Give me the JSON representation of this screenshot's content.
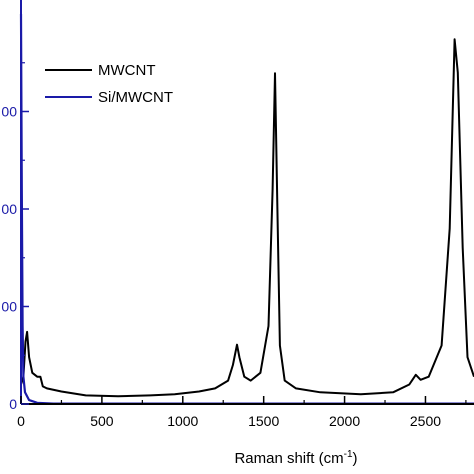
{
  "chart_data": {
    "type": "line",
    "xlabel": "Raman shift (cm",
    "xlabel_sup": "-1",
    "xlabel_close": ")",
    "xlim": [
      0,
      2800
    ],
    "ylim": [
      0,
      1.0
    ],
    "x_ticks": [
      0,
      500,
      1000,
      1500,
      2000,
      2500
    ],
    "y_ticks": [
      0,
      0.25,
      0.5,
      0.75
    ],
    "y_tick_labels": [
      "0",
      "00",
      "00",
      "00"
    ],
    "grid": false,
    "legend_position": "top-left",
    "series": [
      {
        "name": "MWCNT",
        "color": "#000000",
        "points": [
          [
            0,
            0.05
          ],
          [
            15,
            0.07
          ],
          [
            28,
            0.16
          ],
          [
            38,
            0.185
          ],
          [
            50,
            0.12
          ],
          [
            70,
            0.08
          ],
          [
            100,
            0.07
          ],
          [
            120,
            0.07
          ],
          [
            135,
            0.045
          ],
          [
            160,
            0.04
          ],
          [
            250,
            0.032
          ],
          [
            400,
            0.022
          ],
          [
            600,
            0.02
          ],
          [
            800,
            0.022
          ],
          [
            950,
            0.025
          ],
          [
            1100,
            0.032
          ],
          [
            1200,
            0.04
          ],
          [
            1280,
            0.06
          ],
          [
            1310,
            0.1
          ],
          [
            1335,
            0.152
          ],
          [
            1350,
            0.12
          ],
          [
            1380,
            0.07
          ],
          [
            1420,
            0.06
          ],
          [
            1480,
            0.08
          ],
          [
            1530,
            0.2
          ],
          [
            1555,
            0.55
          ],
          [
            1570,
            0.848
          ],
          [
            1585,
            0.5
          ],
          [
            1600,
            0.15
          ],
          [
            1630,
            0.06
          ],
          [
            1700,
            0.04
          ],
          [
            1850,
            0.03
          ],
          [
            2100,
            0.025
          ],
          [
            2300,
            0.03
          ],
          [
            2400,
            0.05
          ],
          [
            2440,
            0.075
          ],
          [
            2470,
            0.062
          ],
          [
            2520,
            0.07
          ],
          [
            2600,
            0.15
          ],
          [
            2650,
            0.45
          ],
          [
            2680,
            0.935
          ],
          [
            2700,
            0.85
          ],
          [
            2730,
            0.4
          ],
          [
            2760,
            0.12
          ],
          [
            2800,
            0.07
          ]
        ]
      },
      {
        "name": "Si/MWCNT",
        "color": "#1a1aa8",
        "points": [
          [
            0,
            1.0
          ],
          [
            5,
            0.55
          ],
          [
            10,
            0.2
          ],
          [
            15,
            0.07
          ],
          [
            25,
            0.03
          ],
          [
            50,
            0.01
          ],
          [
            100,
            0.003
          ],
          [
            200,
            0.001
          ],
          [
            2800,
            0.001
          ]
        ]
      }
    ]
  }
}
